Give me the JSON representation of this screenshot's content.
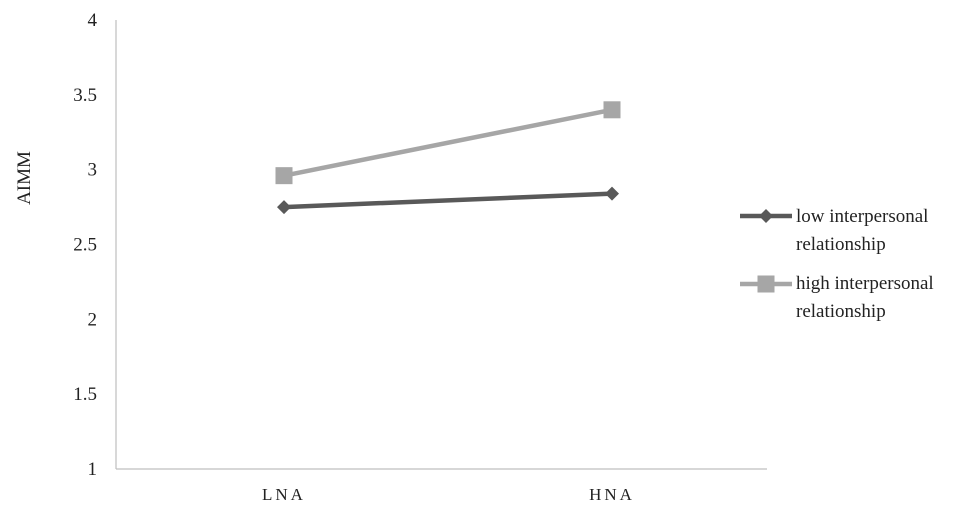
{
  "chart_data": {
    "type": "line",
    "categories": [
      "LNA",
      "HNA"
    ],
    "ylabel": "AIMM",
    "xlabel": "",
    "ylim": [
      1,
      4
    ],
    "yticks": [
      "1",
      "1.5",
      "2",
      "2.5",
      "3",
      "3.5",
      "4"
    ],
    "grid": false,
    "legend_position": "right",
    "series": [
      {
        "name_lines": [
          "low interpersonal",
          "relationship"
        ],
        "values": [
          2.75,
          2.84
        ],
        "color": "#595959",
        "marker": "diamond"
      },
      {
        "name_lines": [
          "high interpersonal",
          "relationship"
        ],
        "values": [
          2.96,
          3.4
        ],
        "color": "#a6a6a6",
        "marker": "square"
      }
    ]
  }
}
